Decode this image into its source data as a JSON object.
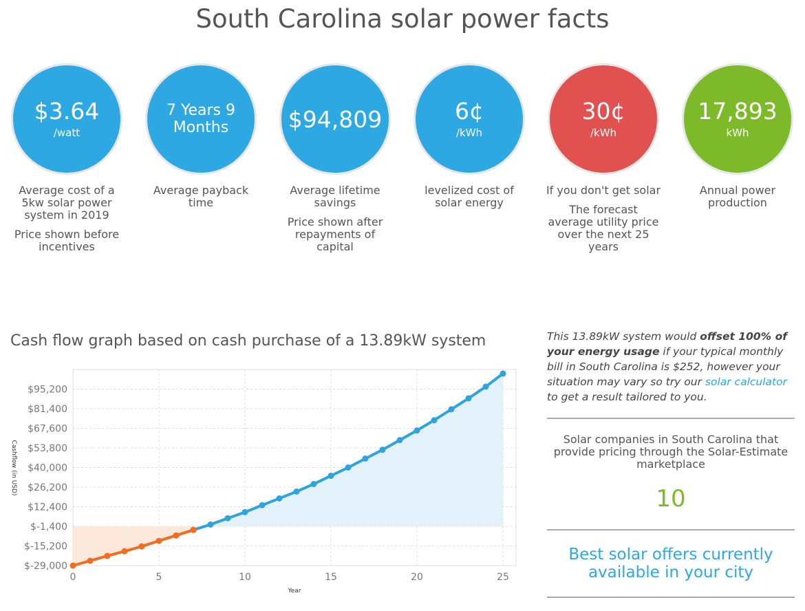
{
  "header": {
    "title": "South Carolina solar power facts"
  },
  "stats": [
    {
      "value": "$3.64",
      "unit": "/watt",
      "description": "Average cost of a 5kw solar power system in 2019",
      "note": "Price shown before incentives",
      "color": "#2ea8e2"
    },
    {
      "value": "7 Years 9 Months",
      "description": "Average payback time",
      "color": "#2ea8e2"
    },
    {
      "value": "$94,809",
      "description": "Average lifetime savings",
      "note": "Price shown after repayments of capital",
      "color": "#2ea8e2"
    },
    {
      "value": "6¢",
      "unit": "/kWh",
      "description": "levelized cost of solar energy",
      "color": "#2ea8e2"
    },
    {
      "value": "30¢",
      "unit": "/kWh",
      "description": "If you don't get solar",
      "note": "The forecast average utility price over the next 25 years",
      "color": "#e0514f"
    },
    {
      "value": "17,893",
      "unit": "kWh",
      "description": "Annual power production",
      "color": "#7dba2a"
    }
  ],
  "chart_data": {
    "type": "line",
    "title": "Cash flow graph based on cash purchase of a 13.89kW system",
    "x_label": "Year",
    "y_label": "Cashflow (in USD)",
    "x": [
      0,
      1,
      2,
      3,
      4,
      5,
      6,
      7,
      8,
      9,
      10,
      11,
      12,
      13,
      14,
      15,
      16,
      17,
      18,
      19,
      20,
      21,
      22,
      23,
      24,
      25
    ],
    "series": [
      {
        "color": "#f26c21",
        "fill": "#fde9dc",
        "values": [
          -29000,
          -25600,
          -22200,
          -18900,
          -15500,
          -11600,
          -7800,
          -3900,
          null,
          null,
          null,
          null,
          null,
          null,
          null,
          null,
          null,
          null,
          null,
          null,
          null,
          null,
          null,
          null,
          null,
          null
        ]
      },
      {
        "color": "#2ea3dc",
        "fill": "#e2f1fa",
        "values": [
          null,
          null,
          null,
          null,
          null,
          null,
          null,
          -3900,
          -100,
          4300,
          8600,
          13500,
          18300,
          23100,
          28400,
          34200,
          40000,
          46300,
          52500,
          59300,
          66100,
          73300,
          81000,
          88700,
          96900,
          106100
        ]
      }
    ],
    "xlim": [
      0,
      25
    ],
    "xticks": [
      0,
      5,
      10,
      15,
      20,
      25
    ],
    "ylim": [
      -29000,
      109000
    ],
    "yticks": [
      {
        "value": -29000,
        "label": "$-29,000"
      },
      {
        "value": -15200,
        "label": "$-15,200"
      },
      {
        "value": -1400,
        "label": "$-1,400"
      },
      {
        "value": 12400,
        "label": "$12,400"
      },
      {
        "value": 26200,
        "label": "$26,200"
      },
      {
        "value": 40000,
        "label": "$40,000"
      },
      {
        "value": 53800,
        "label": "$53,800"
      },
      {
        "value": 67600,
        "label": "$67,600"
      },
      {
        "value": 81400,
        "label": "$81,400"
      },
      {
        "value": 95200,
        "label": "$95,200"
      }
    ],
    "grid": true
  },
  "sidebar": {
    "summary": [
      "This 13.89kW system would ",
      "offset 100% of your energy usage",
      " if your typical monthly bill in South Carolina is $252, however your situation may vary so try our ",
      "solar calculator",
      " to get a result tailored to you."
    ],
    "companies_text": "Solar companies in South Carolina that provide pricing through the Solar-Estimate marketplace",
    "companies_count": "10",
    "offers_link": "Best solar offers currently available in your city"
  }
}
